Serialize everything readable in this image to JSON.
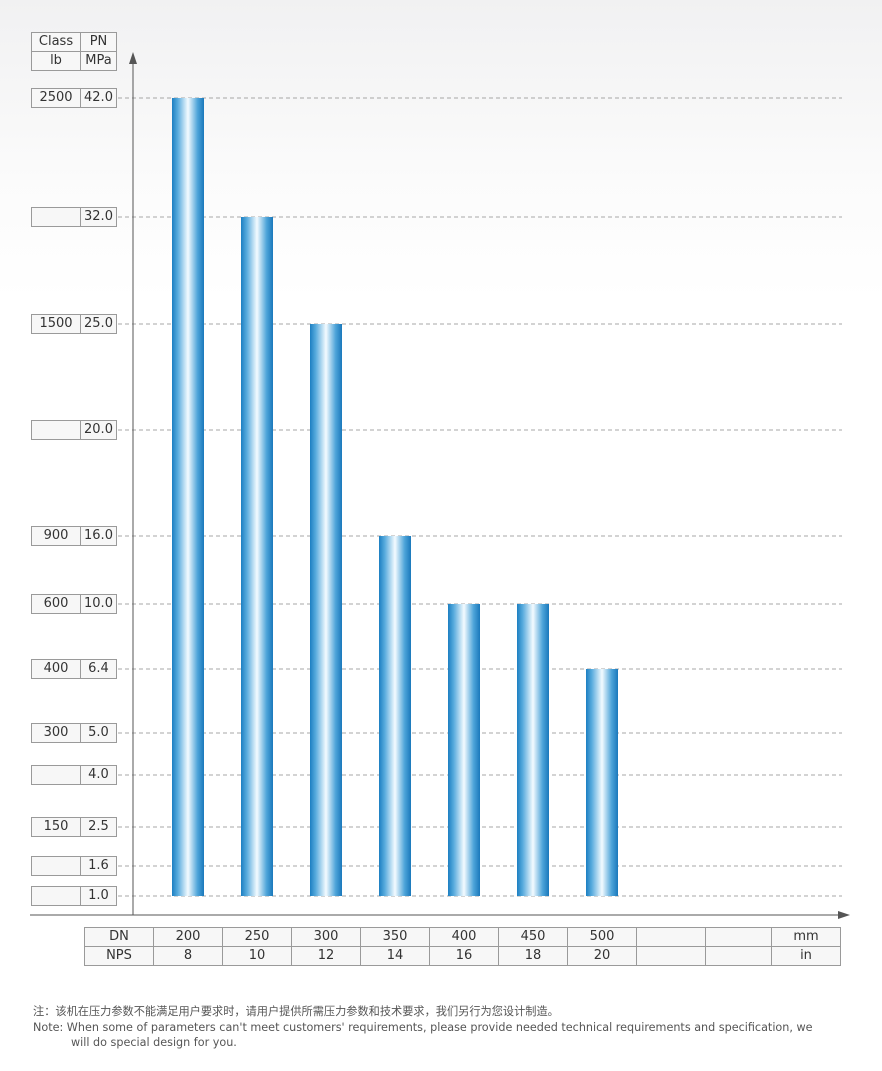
{
  "axis_header": {
    "class_label": "Class",
    "pn_label": "PN",
    "lb_unit": "lb",
    "mpa_unit": "MPa"
  },
  "x_table": {
    "dn_label": "DN",
    "nps_label": "NPS",
    "dn_values": [
      "200",
      "250",
      "300",
      "350",
      "400",
      "450",
      "500",
      "",
      ""
    ],
    "nps_values": [
      "8",
      "10",
      "12",
      "14",
      "16",
      "18",
      "20",
      "",
      ""
    ],
    "dn_unit": "mm",
    "nps_unit": "in"
  },
  "chart_data": {
    "type": "bar",
    "categories": [
      "200",
      "250",
      "300",
      "350",
      "400",
      "450",
      "500"
    ],
    "values": [
      42.0,
      32.0,
      25.0,
      16.0,
      10.0,
      10.0,
      6.4
    ],
    "y_ticks": [
      {
        "mpa": "42.0",
        "class": "2500"
      },
      {
        "mpa": "32.0",
        "class": ""
      },
      {
        "mpa": "25.0",
        "class": "1500"
      },
      {
        "mpa": "20.0",
        "class": ""
      },
      {
        "mpa": "16.0",
        "class": "900"
      },
      {
        "mpa": "10.0",
        "class": "600"
      },
      {
        "mpa": "6.4",
        "class": "400"
      },
      {
        "mpa": "5.0",
        "class": "300"
      },
      {
        "mpa": "4.0",
        "class": ""
      },
      {
        "mpa": "2.5",
        "class": "150"
      },
      {
        "mpa": "1.6",
        "class": ""
      },
      {
        "mpa": "1.0",
        "class": ""
      }
    ],
    "ylabel": "PN MPa",
    "xlabel": "DN",
    "grid": true,
    "bar_color": "#1f87c8"
  },
  "notes": {
    "cn": "注：该机在压力参数不能满足用户要求时，请用户提供所需压力参数和技术要求，我们另行为您设计制造。",
    "en_line1": "Note: When some of parameters can't meet customers' requirements, please provide needed technical requirements and specification, we",
    "en_line2": "will do special design for you."
  }
}
